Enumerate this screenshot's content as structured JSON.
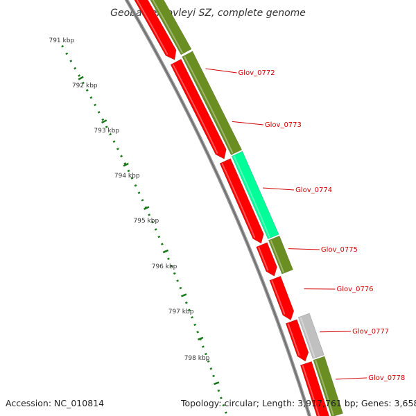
{
  "title": "Geobacter lovleyi SZ, complete genome",
  "accession_text": "Accession: NC_010814",
  "topology_text": "Topology: circular; Length: 3,917,761 bp; Genes: 3,658",
  "colors": {
    "backbone": "#808080",
    "cds_reverse": "#ff0000",
    "cds_forward": "#6b8e23",
    "highlight": "#00ff99",
    "other": "#c0c0c0",
    "ticks": "#1a7a1a",
    "label": "#d00000"
  },
  "scale_labels": [
    "791 kbp",
    "792 kbp",
    "793 kbp",
    "794 kbp",
    "795 kbp",
    "796 kbp",
    "797 kbp",
    "798 kbp"
  ],
  "gene_labels": [
    "Glov_0772",
    "Glov_0773",
    "Glov_0774",
    "Glov_0775",
    "Glov_0776",
    "Glov_0777",
    "Glov_0778"
  ]
}
